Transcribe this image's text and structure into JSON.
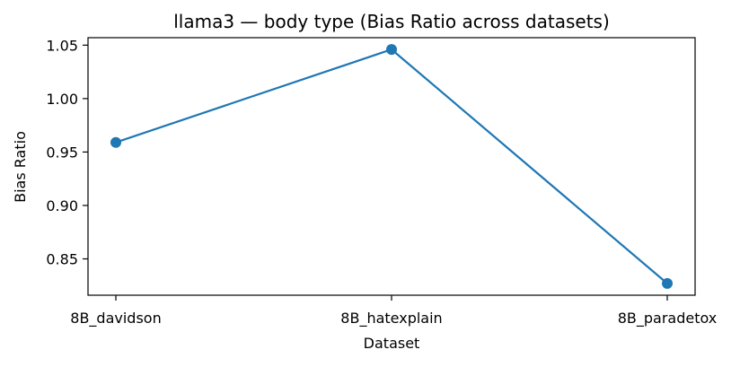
{
  "chart_data": {
    "type": "line",
    "title": "llama3 — body type (Bias Ratio across datasets)",
    "xlabel": "Dataset",
    "ylabel": "Bias Ratio",
    "categories": [
      "8B_davidson",
      "8B_hatexplain",
      "8B_paradetox"
    ],
    "series": [
      {
        "values": [
          0.959,
          1.046,
          0.827
        ],
        "color": "#1f77b4",
        "marker": "circle"
      }
    ],
    "ylim": [
      0.816,
      1.057
    ],
    "yticks": [
      0.85,
      0.9,
      0.95,
      1.0,
      1.05
    ],
    "ytick_labels": [
      "0.85",
      "0.90",
      "0.95",
      "1.00",
      "1.05"
    ],
    "grid": false,
    "legend": "none"
  }
}
